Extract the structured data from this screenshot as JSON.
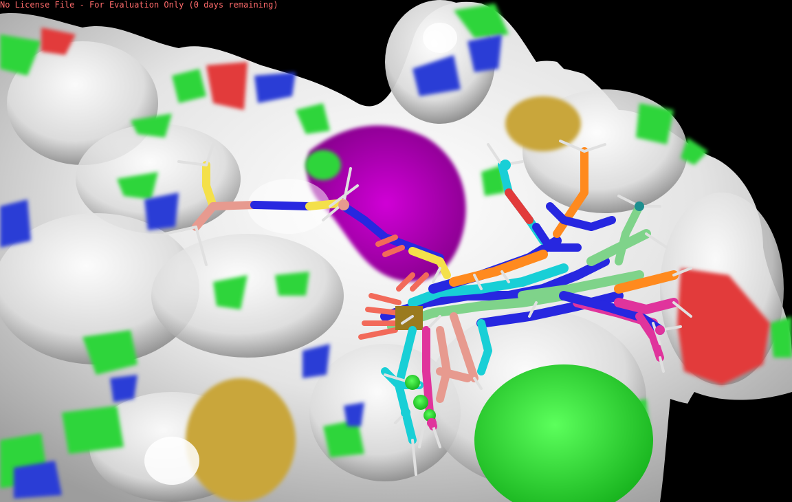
{
  "viewer": {
    "license_notice": "No License File - For Evaluation Only (0 days remaining)"
  },
  "colors": {
    "background": "#000000",
    "license_text": "#ff6b6b",
    "surface_carbon": "#e6e6e6",
    "surface_nitrogen": "#2a3cd6",
    "surface_oxygen": "#e23b3b",
    "surface_sulfur": "#c9a63a",
    "surface_hydrophobic": "#2fd53a",
    "surface_pocket": "#c100c6",
    "ligand_colors": [
      "#2727e0",
      "#f4e04a",
      "#e79a8f",
      "#18cfd6",
      "#ff8a1e",
      "#e0349c",
      "#7fd38a",
      "#46d446",
      "#f26a5a",
      "#c8c8c8"
    ]
  },
  "scene": {
    "content": "protein molecular surface with superposed ligand poses in the binding pocket",
    "representation": [
      "surface",
      "sticks"
    ]
  }
}
